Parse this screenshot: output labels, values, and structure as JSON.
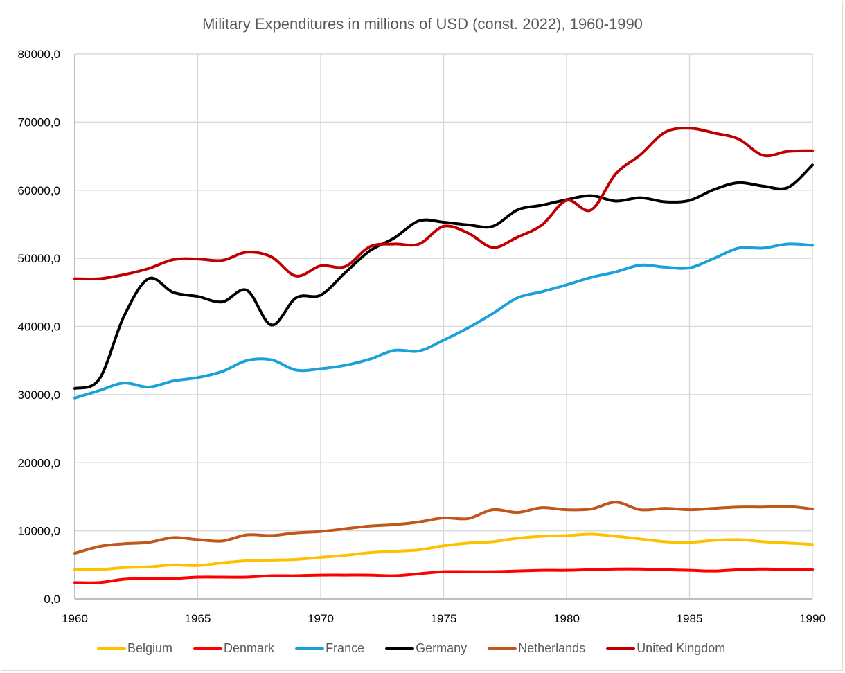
{
  "chart_data": {
    "type": "line",
    "title": "Military Expenditures in millions of USD (const. 2022), 1960-1990",
    "xlabel": "",
    "ylabel": "",
    "ylim": [
      0,
      80000
    ],
    "xlim": [
      1960,
      1990
    ],
    "grid": true,
    "legend_position": "bottom",
    "y_ticks": [
      "0,0",
      "10000,0",
      "20000,0",
      "30000,0",
      "40000,0",
      "50000,0",
      "60000,0",
      "70000,0",
      "80000,0"
    ],
    "x_ticks": [
      "1960",
      "1965",
      "1970",
      "1975",
      "1980",
      "1985",
      "1990"
    ],
    "x": [
      1960,
      1961,
      1962,
      1963,
      1964,
      1965,
      1966,
      1967,
      1968,
      1969,
      1970,
      1971,
      1972,
      1973,
      1974,
      1975,
      1976,
      1977,
      1978,
      1979,
      1980,
      1981,
      1982,
      1983,
      1984,
      1985,
      1986,
      1987,
      1988,
      1989,
      1990
    ],
    "series": [
      {
        "name": "Belgium",
        "color": "#FFC000",
        "values": [
          4300,
          4300,
          4600,
          4700,
          5000,
          4900,
          5300,
          5600,
          5700,
          5800,
          6100,
          6400,
          6800,
          7000,
          7200,
          7800,
          8200,
          8400,
          8900,
          9200,
          9300,
          9500,
          9200,
          8800,
          8400,
          8300,
          8600,
          8700,
          8400,
          8200,
          8000
        ]
      },
      {
        "name": "Denmark",
        "color": "#FF0000",
        "values": [
          2400,
          2400,
          2900,
          3000,
          3000,
          3200,
          3200,
          3200,
          3400,
          3400,
          3500,
          3500,
          3500,
          3400,
          3700,
          4000,
          4000,
          4000,
          4100,
          4200,
          4200,
          4300,
          4400,
          4400,
          4300,
          4200,
          4100,
          4300,
          4400,
          4300,
          4300
        ]
      },
      {
        "name": "France",
        "color": "#1BA1DA",
        "values": [
          29500,
          30600,
          31700,
          31100,
          32000,
          32500,
          33400,
          35000,
          35100,
          33600,
          33800,
          34300,
          35200,
          36500,
          36400,
          38000,
          39800,
          41900,
          44200,
          45100,
          46100,
          47200,
          48000,
          49000,
          48700,
          48600,
          50000,
          51500,
          51500,
          52100,
          51900
        ]
      },
      {
        "name": "Germany",
        "color": "#000000",
        "values": [
          30900,
          32300,
          41500,
          47000,
          45000,
          44400,
          43600,
          45300,
          40200,
          44200,
          44600,
          47900,
          51100,
          53000,
          55500,
          55300,
          54900,
          54700,
          57100,
          57800,
          58600,
          59200,
          58400,
          58900,
          58300,
          58500,
          60100,
          61100,
          60600,
          60400,
          63700
        ]
      },
      {
        "name": "Netherlands",
        "color": "#C0561A",
        "values": [
          6700,
          7700,
          8100,
          8300,
          9000,
          8700,
          8500,
          9400,
          9300,
          9700,
          9900,
          10300,
          10700,
          10900,
          11300,
          11900,
          11800,
          13100,
          12700,
          13400,
          13100,
          13200,
          14200,
          13100,
          13300,
          13100,
          13300,
          13500,
          13500,
          13600,
          13200
        ]
      },
      {
        "name": "United Kingdom",
        "color": "#C00000",
        "values": [
          47000,
          47000,
          47600,
          48500,
          49800,
          49900,
          49700,
          50900,
          50200,
          47400,
          48900,
          48800,
          51700,
          52100,
          52100,
          54700,
          53700,
          51600,
          53100,
          54900,
          58500,
          57100,
          62400,
          65200,
          68500,
          69100,
          68400,
          67500,
          65100,
          65700,
          65800
        ]
      }
    ]
  }
}
